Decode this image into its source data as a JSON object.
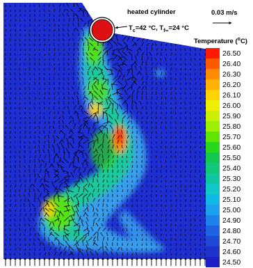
{
  "cylinder_label": "heated cylinder",
  "condition": {
    "part1": "T",
    "sub1": "c",
    "part2": "=42 °C, T",
    "sub2": "f∞",
    "part3": "=24 °C"
  },
  "velocity_scale": "0.03 m/s",
  "colorbar": {
    "title_prefix": "Temperature (",
    "title_super": "o",
    "title_suffix": "C)",
    "ticks": [
      "26.50",
      "26.40",
      "26.30",
      "26.20",
      "26.10",
      "26.00",
      "25.90",
      "25.80",
      "25.70",
      "25.60",
      "25.50",
      "25.40",
      "25.30",
      "25.20",
      "25.10",
      "25.00",
      "24.90",
      "24.80",
      "24.70",
      "24.60",
      "24.50"
    ],
    "colors": [
      "#ff1a00",
      "#ff5a00",
      "#ff8c00",
      "#ffb000",
      "#ffd400",
      "#eef000",
      "#c8f000",
      "#9cf000",
      "#5ee600",
      "#28d81c",
      "#12c850",
      "#10c878",
      "#10c8a0",
      "#10c8c8",
      "#10b8e6",
      "#1ca0f0",
      "#1e82ea",
      "#1e64e0",
      "#1e48d6",
      "#1e32cc",
      "#1e1ec8"
    ],
    "range": [
      24.5,
      26.5
    ]
  },
  "colors": {
    "field_background": "#1e2ed0",
    "cylinder_fill": "#dd1111"
  }
}
